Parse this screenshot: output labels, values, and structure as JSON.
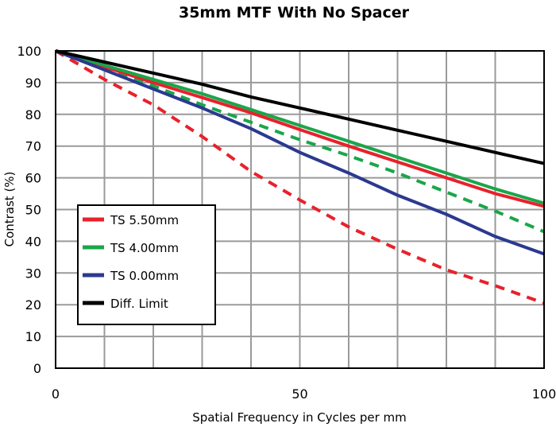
{
  "chart_data": {
    "type": "line",
    "title": "35mm MTF With No Spacer",
    "xlabel": "Spatial Frequency in Cycles per mm",
    "ylabel": "Contrast (%)",
    "xlim": [
      0,
      100
    ],
    "ylim": [
      0,
      100
    ],
    "x_ticks": [
      "0",
      "50",
      "100"
    ],
    "y_ticks": [
      "0",
      "10",
      "20",
      "30",
      "40",
      "50",
      "60",
      "70",
      "80",
      "90",
      "100"
    ],
    "grid": true,
    "legend_placement": "bottom-left",
    "legend": [
      {
        "label": "TS 5.50mm",
        "color": "#e8212b"
      },
      {
        "label": "TS 4.00mm",
        "color": "#1aa64a"
      },
      {
        "label": "TS 0.00mm",
        "color": "#2b3990"
      },
      {
        "label": "Diff. Limit",
        "color": "#000000"
      }
    ],
    "series": [
      {
        "name": "TS 5.50mm",
        "color": "#e8212b",
        "style": "solid",
        "x": [
          0,
          10,
          20,
          30,
          40,
          50,
          60,
          70,
          80,
          90,
          100
        ],
        "y": [
          100,
          95,
          90,
          85.3,
          80.5,
          75.2,
          70,
          65,
          60,
          55,
          51
        ]
      },
      {
        "name": "TS 4.00mm",
        "color": "#1aa64a",
        "style": "solid",
        "x": [
          0,
          10,
          20,
          30,
          40,
          50,
          60,
          70,
          80,
          90,
          100
        ],
        "y": [
          100,
          95.5,
          91,
          86.5,
          81.5,
          76.5,
          71.5,
          66.5,
          61.5,
          56.5,
          52
        ]
      },
      {
        "name": "TS 0.00mm",
        "color": "#2b3990",
        "style": "solid",
        "x": [
          0,
          10,
          20,
          30,
          40,
          50,
          60,
          70,
          80,
          90,
          100
        ],
        "y": [
          100,
          94,
          88,
          82,
          75.5,
          68,
          61.5,
          54.5,
          48.5,
          41.5,
          36
        ]
      },
      {
        "name": "TS 5.50mm",
        "color": "#e8212b",
        "style": "dashed",
        "x": [
          0,
          10,
          20,
          30,
          40,
          50,
          60,
          70,
          80,
          90,
          100
        ],
        "y": [
          100,
          91,
          83,
          73,
          62,
          53,
          44.5,
          37.5,
          31,
          26,
          20.5
        ]
      },
      {
        "name": "TS 4.00mm",
        "color": "#1aa64a",
        "style": "dashed",
        "x": [
          0,
          10,
          20,
          30,
          40,
          50,
          60,
          70,
          80,
          90,
          100
        ],
        "y": [
          100,
          95,
          89,
          83,
          77.5,
          72,
          67,
          61.5,
          55.5,
          49.5,
          43
        ]
      },
      {
        "name": "Diff. Limit",
        "color": "#000000",
        "style": "solid",
        "x": [
          0,
          10,
          20,
          30,
          40,
          50,
          60,
          70,
          80,
          90,
          100
        ],
        "y": [
          100,
          96.5,
          93,
          89.5,
          85.5,
          82,
          78.5,
          75,
          71.5,
          68,
          64.5
        ]
      }
    ]
  }
}
